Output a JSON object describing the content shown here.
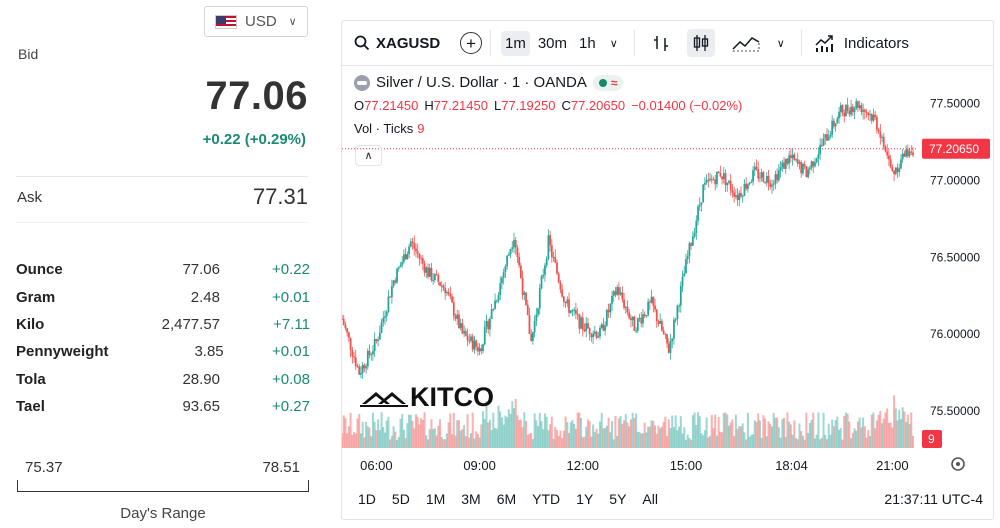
{
  "currency": {
    "label": "USD",
    "flag_icon": "us-flag-icon"
  },
  "bid": {
    "label": "Bid",
    "value": "77.06",
    "change": "+0.22 (+0.29%)"
  },
  "ask": {
    "label": "Ask",
    "value": "77.31"
  },
  "units": [
    {
      "name": "Ounce",
      "price": "77.06",
      "change": "+0.22"
    },
    {
      "name": "Gram",
      "price": "2.48",
      "change": "+0.01"
    },
    {
      "name": "Kilo",
      "price": "2,477.57",
      "change": "+7.11"
    },
    {
      "name": "Pennyweight",
      "price": "3.85",
      "change": "+0.01"
    },
    {
      "name": "Tola",
      "price": "28.90",
      "change": "+0.08"
    },
    {
      "name": "Tael",
      "price": "93.65",
      "change": "+0.27"
    }
  ],
  "days_range": {
    "low": "75.37",
    "high": "78.51",
    "label": "Day's Range"
  },
  "toolbar": {
    "symbol": "XAGUSD",
    "intervals": [
      "1m",
      "30m",
      "1h"
    ],
    "active_interval": "1m",
    "indicators_label": "Indicators"
  },
  "legend": {
    "title": "Silver / U.S. Dollar · 1 · OANDA",
    "open_key": "O",
    "open": "77.21450",
    "high_key": "H",
    "high": "77.21450",
    "low_key": "L",
    "low": "77.19250",
    "close_key": "C",
    "close": "77.20650",
    "change": "−0.01400 (−0.02%)",
    "vol_label": "Vol · Ticks",
    "vol_value": "9"
  },
  "watermark": "KITCO",
  "price_axis": {
    "ticks": [
      "77.50000",
      "77.00000",
      "76.50000",
      "76.00000",
      "75.50000"
    ],
    "last_price_label": "77.20650",
    "volume_label": "9"
  },
  "time_axis": {
    "ticks": [
      "06:00",
      "09:00",
      "12:00",
      "15:00",
      "18:04",
      "21:00"
    ]
  },
  "ranges": [
    "1D",
    "5D",
    "1M",
    "3M",
    "6M",
    "YTD",
    "1Y",
    "5Y",
    "All"
  ],
  "clock": "21:37:11 UTC-4",
  "colors": {
    "up": "#26a69a",
    "down": "#ef5350",
    "positive_text": "#1a8a72",
    "last_price": "#f23645"
  },
  "chart_data": {
    "type": "candlestick",
    "ylim": [
      75.2,
      77.7
    ],
    "price_ticks": [
      77.5,
      77.0,
      76.5,
      76.0,
      75.5
    ],
    "x_ticks": [
      "06:00",
      "09:00",
      "12:00",
      "15:00",
      "18:04",
      "21:00"
    ],
    "last_price": 77.2065,
    "path_keypoints": [
      [
        "05:00",
        76.1
      ],
      [
        "05:30",
        75.75
      ],
      [
        "06:00",
        75.95
      ],
      [
        "06:30",
        76.35
      ],
      [
        "07:00",
        76.6
      ],
      [
        "07:30",
        76.4
      ],
      [
        "08:00",
        76.3
      ],
      [
        "08:30",
        76.0
      ],
      [
        "09:00",
        75.9
      ],
      [
        "09:30",
        76.25
      ],
      [
        "10:00",
        76.65
      ],
      [
        "10:30",
        75.95
      ],
      [
        "11:00",
        76.6
      ],
      [
        "11:30",
        76.2
      ],
      [
        "12:00",
        76.05
      ],
      [
        "12:30",
        76.0
      ],
      [
        "13:00",
        76.3
      ],
      [
        "13:30",
        76.05
      ],
      [
        "14:00",
        76.2
      ],
      [
        "14:30",
        75.9
      ],
      [
        "15:00",
        76.45
      ],
      [
        "15:30",
        76.95
      ],
      [
        "16:00",
        77.05
      ],
      [
        "16:30",
        76.9
      ],
      [
        "17:00",
        77.05
      ],
      [
        "17:30",
        77.0
      ],
      [
        "18:00",
        77.15
      ],
      [
        "18:30",
        77.05
      ],
      [
        "19:00",
        77.25
      ],
      [
        "19:30",
        77.45
      ],
      [
        "20:00",
        77.5
      ],
      [
        "20:30",
        77.4
      ],
      [
        "21:00",
        77.05
      ],
      [
        "21:30",
        77.2065
      ]
    ]
  }
}
